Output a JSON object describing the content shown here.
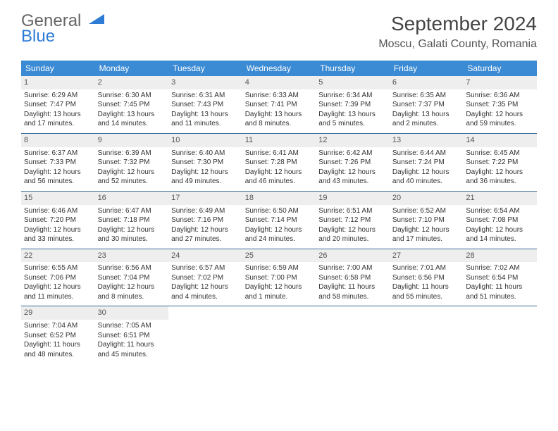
{
  "logo": {
    "text1": "General",
    "text2": "Blue"
  },
  "title": "September 2024",
  "location": "Moscu, Galati County, Romania",
  "colors": {
    "header_bg": "#3a8ad4",
    "header_text": "#ffffff",
    "daynum_bg": "#eeeeee",
    "week_border": "#3a6a9a",
    "logo_accent": "#2e7cd6"
  },
  "weekdays": [
    "Sunday",
    "Monday",
    "Tuesday",
    "Wednesday",
    "Thursday",
    "Friday",
    "Saturday"
  ],
  "days": [
    {
      "n": "1",
      "sunrise": "Sunrise: 6:29 AM",
      "sunset": "Sunset: 7:47 PM",
      "day1": "Daylight: 13 hours",
      "day2": "and 17 minutes."
    },
    {
      "n": "2",
      "sunrise": "Sunrise: 6:30 AM",
      "sunset": "Sunset: 7:45 PM",
      "day1": "Daylight: 13 hours",
      "day2": "and 14 minutes."
    },
    {
      "n": "3",
      "sunrise": "Sunrise: 6:31 AM",
      "sunset": "Sunset: 7:43 PM",
      "day1": "Daylight: 13 hours",
      "day2": "and 11 minutes."
    },
    {
      "n": "4",
      "sunrise": "Sunrise: 6:33 AM",
      "sunset": "Sunset: 7:41 PM",
      "day1": "Daylight: 13 hours",
      "day2": "and 8 minutes."
    },
    {
      "n": "5",
      "sunrise": "Sunrise: 6:34 AM",
      "sunset": "Sunset: 7:39 PM",
      "day1": "Daylight: 13 hours",
      "day2": "and 5 minutes."
    },
    {
      "n": "6",
      "sunrise": "Sunrise: 6:35 AM",
      "sunset": "Sunset: 7:37 PM",
      "day1": "Daylight: 13 hours",
      "day2": "and 2 minutes."
    },
    {
      "n": "7",
      "sunrise": "Sunrise: 6:36 AM",
      "sunset": "Sunset: 7:35 PM",
      "day1": "Daylight: 12 hours",
      "day2": "and 59 minutes."
    },
    {
      "n": "8",
      "sunrise": "Sunrise: 6:37 AM",
      "sunset": "Sunset: 7:33 PM",
      "day1": "Daylight: 12 hours",
      "day2": "and 56 minutes."
    },
    {
      "n": "9",
      "sunrise": "Sunrise: 6:39 AM",
      "sunset": "Sunset: 7:32 PM",
      "day1": "Daylight: 12 hours",
      "day2": "and 52 minutes."
    },
    {
      "n": "10",
      "sunrise": "Sunrise: 6:40 AM",
      "sunset": "Sunset: 7:30 PM",
      "day1": "Daylight: 12 hours",
      "day2": "and 49 minutes."
    },
    {
      "n": "11",
      "sunrise": "Sunrise: 6:41 AM",
      "sunset": "Sunset: 7:28 PM",
      "day1": "Daylight: 12 hours",
      "day2": "and 46 minutes."
    },
    {
      "n": "12",
      "sunrise": "Sunrise: 6:42 AM",
      "sunset": "Sunset: 7:26 PM",
      "day1": "Daylight: 12 hours",
      "day2": "and 43 minutes."
    },
    {
      "n": "13",
      "sunrise": "Sunrise: 6:44 AM",
      "sunset": "Sunset: 7:24 PM",
      "day1": "Daylight: 12 hours",
      "day2": "and 40 minutes."
    },
    {
      "n": "14",
      "sunrise": "Sunrise: 6:45 AM",
      "sunset": "Sunset: 7:22 PM",
      "day1": "Daylight: 12 hours",
      "day2": "and 36 minutes."
    },
    {
      "n": "15",
      "sunrise": "Sunrise: 6:46 AM",
      "sunset": "Sunset: 7:20 PM",
      "day1": "Daylight: 12 hours",
      "day2": "and 33 minutes."
    },
    {
      "n": "16",
      "sunrise": "Sunrise: 6:47 AM",
      "sunset": "Sunset: 7:18 PM",
      "day1": "Daylight: 12 hours",
      "day2": "and 30 minutes."
    },
    {
      "n": "17",
      "sunrise": "Sunrise: 6:49 AM",
      "sunset": "Sunset: 7:16 PM",
      "day1": "Daylight: 12 hours",
      "day2": "and 27 minutes."
    },
    {
      "n": "18",
      "sunrise": "Sunrise: 6:50 AM",
      "sunset": "Sunset: 7:14 PM",
      "day1": "Daylight: 12 hours",
      "day2": "and 24 minutes."
    },
    {
      "n": "19",
      "sunrise": "Sunrise: 6:51 AM",
      "sunset": "Sunset: 7:12 PM",
      "day1": "Daylight: 12 hours",
      "day2": "and 20 minutes."
    },
    {
      "n": "20",
      "sunrise": "Sunrise: 6:52 AM",
      "sunset": "Sunset: 7:10 PM",
      "day1": "Daylight: 12 hours",
      "day2": "and 17 minutes."
    },
    {
      "n": "21",
      "sunrise": "Sunrise: 6:54 AM",
      "sunset": "Sunset: 7:08 PM",
      "day1": "Daylight: 12 hours",
      "day2": "and 14 minutes."
    },
    {
      "n": "22",
      "sunrise": "Sunrise: 6:55 AM",
      "sunset": "Sunset: 7:06 PM",
      "day1": "Daylight: 12 hours",
      "day2": "and 11 minutes."
    },
    {
      "n": "23",
      "sunrise": "Sunrise: 6:56 AM",
      "sunset": "Sunset: 7:04 PM",
      "day1": "Daylight: 12 hours",
      "day2": "and 8 minutes."
    },
    {
      "n": "24",
      "sunrise": "Sunrise: 6:57 AM",
      "sunset": "Sunset: 7:02 PM",
      "day1": "Daylight: 12 hours",
      "day2": "and 4 minutes."
    },
    {
      "n": "25",
      "sunrise": "Sunrise: 6:59 AM",
      "sunset": "Sunset: 7:00 PM",
      "day1": "Daylight: 12 hours",
      "day2": "and 1 minute."
    },
    {
      "n": "26",
      "sunrise": "Sunrise: 7:00 AM",
      "sunset": "Sunset: 6:58 PM",
      "day1": "Daylight: 11 hours",
      "day2": "and 58 minutes."
    },
    {
      "n": "27",
      "sunrise": "Sunrise: 7:01 AM",
      "sunset": "Sunset: 6:56 PM",
      "day1": "Daylight: 11 hours",
      "day2": "and 55 minutes."
    },
    {
      "n": "28",
      "sunrise": "Sunrise: 7:02 AM",
      "sunset": "Sunset: 6:54 PM",
      "day1": "Daylight: 11 hours",
      "day2": "and 51 minutes."
    },
    {
      "n": "29",
      "sunrise": "Sunrise: 7:04 AM",
      "sunset": "Sunset: 6:52 PM",
      "day1": "Daylight: 11 hours",
      "day2": "and 48 minutes."
    },
    {
      "n": "30",
      "sunrise": "Sunrise: 7:05 AM",
      "sunset": "Sunset: 6:51 PM",
      "day1": "Daylight: 11 hours",
      "day2": "and 45 minutes."
    }
  ]
}
